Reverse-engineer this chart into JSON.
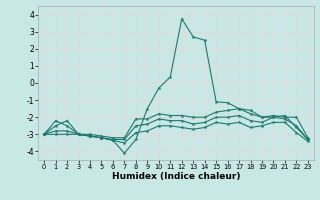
{
  "xlabel": "Humidex (Indice chaleur)",
  "xlim": [
    -0.5,
    23.5
  ],
  "ylim": [
    -4.5,
    4.5
  ],
  "xticks": [
    0,
    1,
    2,
    3,
    4,
    5,
    6,
    7,
    8,
    9,
    10,
    11,
    12,
    13,
    14,
    15,
    16,
    17,
    18,
    19,
    20,
    21,
    22,
    23
  ],
  "yticks": [
    -4,
    -3,
    -2,
    -1,
    0,
    1,
    2,
    3,
    4
  ],
  "bg_color": "#c8e8e5",
  "line_color": "#1a7a6e",
  "grid_color": "#e8d8d8",
  "lines": [
    {
      "x": [
        0,
        1,
        2,
        3,
        4,
        5,
        6,
        7,
        8,
        9,
        10,
        11,
        12,
        13,
        14,
        15,
        16,
        17,
        18,
        19,
        20,
        21,
        22,
        23
      ],
      "y": [
        -3.0,
        -2.5,
        -2.2,
        -3.0,
        -3.1,
        -3.2,
        -3.35,
        -4.1,
        -3.3,
        -1.5,
        -0.3,
        0.35,
        3.75,
        2.7,
        2.5,
        -1.1,
        -1.15,
        -1.5,
        -1.6,
        -2.0,
        -2.0,
        -1.9,
        -2.6,
        -3.3
      ]
    },
    {
      "x": [
        0,
        1,
        2,
        3,
        4,
        5,
        6,
        7,
        8,
        9,
        10,
        11,
        12,
        13,
        14,
        15,
        16,
        17,
        18,
        19,
        20,
        21,
        22,
        23
      ],
      "y": [
        -3.0,
        -2.2,
        -2.5,
        -3.0,
        -3.0,
        -3.1,
        -3.2,
        -3.2,
        -2.1,
        -2.1,
        -1.8,
        -1.9,
        -1.9,
        -2.0,
        -2.0,
        -1.7,
        -1.6,
        -1.5,
        -1.8,
        -2.0,
        -1.9,
        -2.0,
        -2.0,
        -3.2
      ]
    },
    {
      "x": [
        0,
        1,
        2,
        3,
        4,
        5,
        6,
        7,
        8,
        9,
        10,
        11,
        12,
        13,
        14,
        15,
        16,
        17,
        18,
        19,
        20,
        21,
        22,
        23
      ],
      "y": [
        -3.0,
        -2.8,
        -2.8,
        -3.0,
        -3.1,
        -3.2,
        -3.3,
        -3.3,
        -2.5,
        -2.4,
        -2.1,
        -2.2,
        -2.2,
        -2.4,
        -2.3,
        -2.0,
        -2.0,
        -1.9,
        -2.2,
        -2.3,
        -2.0,
        -2.1,
        -2.5,
        -3.3
      ]
    },
    {
      "x": [
        0,
        1,
        2,
        3,
        4,
        5,
        6,
        7,
        8,
        9,
        10,
        11,
        12,
        13,
        14,
        15,
        16,
        17,
        18,
        19,
        20,
        21,
        22,
        23
      ],
      "y": [
        -3.0,
        -3.0,
        -3.0,
        -3.0,
        -3.1,
        -3.2,
        -3.35,
        -3.5,
        -2.9,
        -2.8,
        -2.5,
        -2.5,
        -2.6,
        -2.7,
        -2.6,
        -2.3,
        -2.4,
        -2.3,
        -2.6,
        -2.5,
        -2.3,
        -2.3,
        -2.9,
        -3.4
      ]
    }
  ]
}
